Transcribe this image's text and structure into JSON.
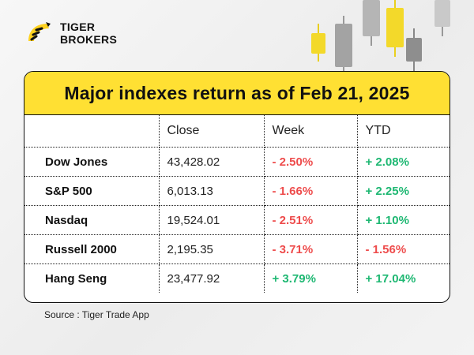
{
  "brand": {
    "line1": "TIGER",
    "line2": "BROKERS",
    "logo_icon": "tiger-stripe-logo-icon"
  },
  "title": "Major indexes return as of Feb 21, 2025",
  "table": {
    "headers": [
      "",
      "Close",
      "Week",
      "YTD"
    ],
    "rows": [
      {
        "name": "Dow Jones",
        "close": "43,428.02",
        "week": "- 2.50%",
        "ytd": "+ 2.08%"
      },
      {
        "name": "S&P 500",
        "close": "6,013.13",
        "week": "- 1.66%",
        "ytd": "+ 2.25%"
      },
      {
        "name": "Nasdaq",
        "close": "19,524.01",
        "week": "- 2.51%",
        "ytd": "+ 1.10%"
      },
      {
        "name": "Russell 2000",
        "close": "2,195.35",
        "week": "- 3.71%",
        "ytd": "- 1.56%"
      },
      {
        "name": "Hang Seng",
        "close": "23,477.92",
        "week": "+ 3.79%",
        "ytd": "+ 17.04%"
      }
    ]
  },
  "source": "Source : Tiger Trade App",
  "colors": {
    "accent": "#ffe033",
    "negative": "#ee4c4c",
    "positive": "#1fb873"
  }
}
